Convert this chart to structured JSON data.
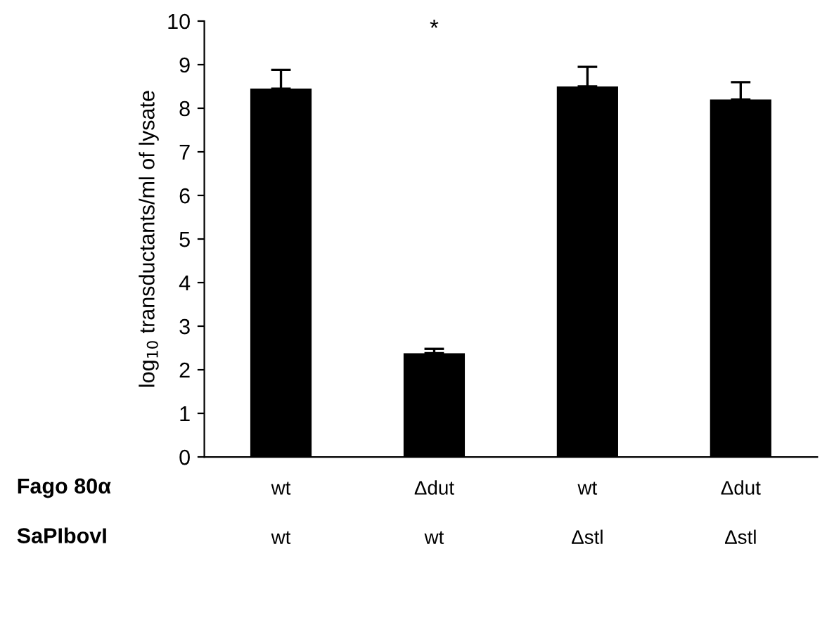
{
  "chart_data": {
    "type": "bar",
    "categories": [
      "wt\nwt",
      "Δdut\nwt",
      "wt\nΔstl",
      "Δdut\nΔstl"
    ],
    "values": [
      8.45,
      2.38,
      8.5,
      8.2
    ],
    "errors": [
      [
        8.45,
        8.88
      ],
      [
        2.38,
        2.48
      ],
      [
        8.5,
        8.95
      ],
      [
        8.2,
        8.6
      ]
    ],
    "color": "#000000",
    "ylabel": "log$_{10}$ transductants/ml of lysate",
    "ylim": [
      0,
      10
    ],
    "yticks": [
      0,
      1,
      2,
      3,
      4,
      5,
      6,
      7,
      8,
      9,
      10
    ],
    "grid": false,
    "legend": false,
    "annotations": [
      "Fago 80α",
      "SaPIbovI",
      "*"
    ]
  }
}
